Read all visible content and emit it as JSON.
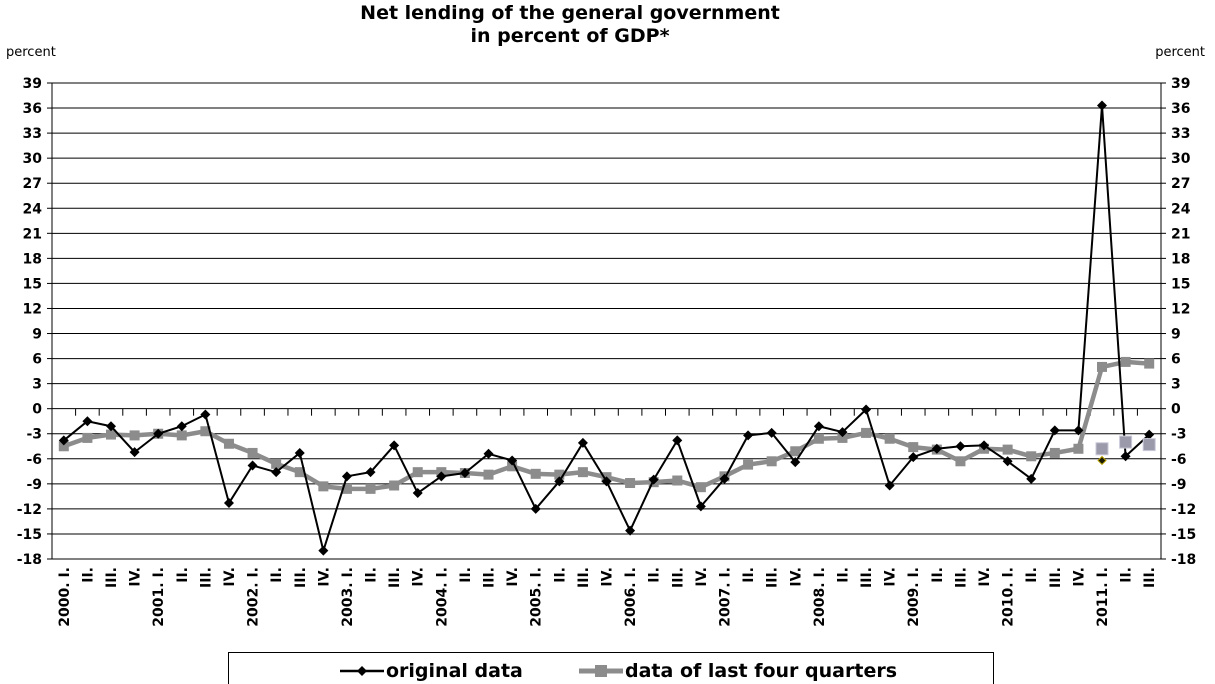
{
  "chart_data": {
    "type": "line",
    "title_line1": "Net lending of the general government",
    "title_line2": "in percent of GDP*",
    "ylabel_left": "percent",
    "ylabel_right": "percent",
    "ylim": [
      -18,
      39
    ],
    "yticks": [
      39,
      36,
      33,
      30,
      27,
      24,
      21,
      18,
      15,
      12,
      9,
      6,
      3,
      0,
      -3,
      -6,
      -9,
      -12,
      -15,
      -18
    ],
    "categories": [
      "2000. I.",
      "II.",
      "III.",
      "IV.",
      "2001. I.",
      "II.",
      "III.",
      "IV.",
      "2002. I.",
      "II.",
      "III.",
      "IV.",
      "2003. I.",
      "II.",
      "III.",
      "IV.",
      "2004. I.",
      "II.",
      "III.",
      "IV.",
      "2005. I.",
      "II.",
      "III.",
      "IV.",
      "2006. I.",
      "II.",
      "III.",
      "IV.",
      "2007. I.",
      "II.",
      "III.",
      "IV.",
      "2008. I.",
      "II.",
      "III.",
      "IV.",
      "2009. I.",
      "II.",
      "III.",
      "IV.",
      "2010. I.",
      "II.",
      "III.",
      "IV.",
      "2011. I.",
      "II.",
      "III."
    ],
    "series": [
      {
        "name": "original data",
        "color": "#000000",
        "marker": "diamond",
        "values": [
          -3.8,
          -1.5,
          -2.1,
          -5.2,
          -3.0,
          -2.1,
          -0.7,
          -11.3,
          -6.8,
          -7.6,
          -5.3,
          -17.0,
          -8.1,
          -7.6,
          -4.4,
          -10.1,
          -8.1,
          -7.7,
          -5.4,
          -6.2,
          -12.0,
          -8.7,
          -4.1,
          -8.7,
          -14.6,
          -8.5,
          -3.8,
          -11.7,
          -8.4,
          -3.2,
          -2.9,
          -6.4,
          -2.1,
          -2.8,
          -0.1,
          -9.2,
          -5.8,
          -4.8,
          -4.5,
          -4.4,
          -6.3,
          -8.4,
          -2.6,
          -2.6,
          36.3,
          -5.7,
          -3.1
        ]
      },
      {
        "name": "data of last four quarters",
        "color": "#8c8c8c",
        "marker": "square",
        "values": [
          -4.5,
          -3.5,
          -3.1,
          -3.2,
          -3.0,
          -3.2,
          -2.7,
          -4.2,
          -5.3,
          -6.6,
          -7.6,
          -9.3,
          -9.6,
          -9.6,
          -9.2,
          -7.6,
          -7.6,
          -7.7,
          -7.9,
          -6.9,
          -7.8,
          -7.9,
          -7.6,
          -8.2,
          -8.9,
          -8.8,
          -8.6,
          -9.4,
          -8.1,
          -6.7,
          -6.3,
          -5.1,
          -3.6,
          -3.5,
          -2.9,
          -3.6,
          -4.6,
          -4.9,
          -6.3,
          -4.8,
          -4.9,
          -5.7,
          -5.3,
          -4.8,
          5.0,
          5.6,
          5.4
        ]
      }
    ],
    "extra_markers": [
      {
        "series": "original data",
        "category_index": 44,
        "value": -6.2
      },
      {
        "series": "data of last four quarters",
        "category_index": 44,
        "value": -4.8
      },
      {
        "series": "data of last four quarters",
        "category_index": 45,
        "value": -4.0
      },
      {
        "series": "data of last four quarters",
        "category_index": 46,
        "value": -4.3
      }
    ],
    "grid": true,
    "legend_position": "bottom",
    "legend": [
      "original data",
      "data of last four quarters"
    ]
  }
}
